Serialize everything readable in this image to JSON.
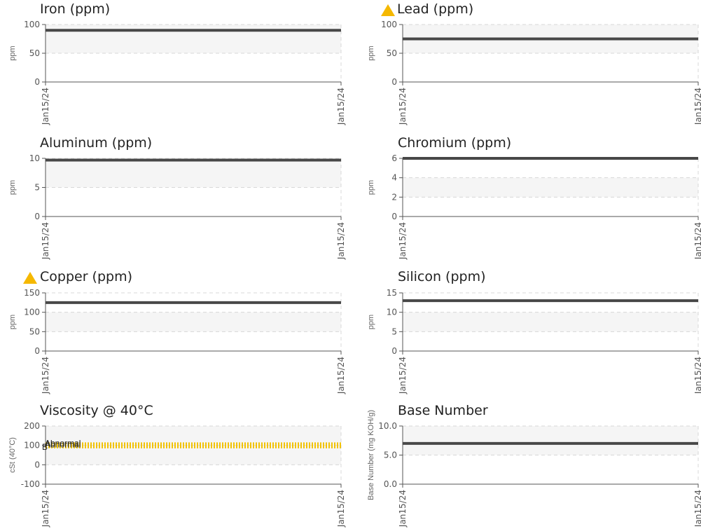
{
  "x_labels": [
    "Jan15/24",
    "Jan15/24"
  ],
  "chart_data": [
    {
      "type": "line",
      "title": "Iron (ppm)",
      "warning": false,
      "ylabel": "ppm",
      "yticks": [
        "0",
        "50",
        "100"
      ],
      "ylim": [
        0,
        100
      ],
      "band": [
        50,
        100
      ],
      "series": [
        {
          "values": [
            90,
            90
          ]
        }
      ]
    },
    {
      "type": "line",
      "title": "Lead (ppm)",
      "warning": true,
      "ylabel": "ppm",
      "yticks": [
        "0",
        "50",
        "100"
      ],
      "ylim": [
        0,
        100
      ],
      "band": [
        50,
        100
      ],
      "series": [
        {
          "values": [
            75,
            75
          ]
        }
      ]
    },
    {
      "type": "line",
      "title": "Aluminum (ppm)",
      "warning": false,
      "ylabel": "ppm",
      "yticks": [
        "0",
        "5",
        "10"
      ],
      "ylim": [
        0,
        10
      ],
      "band": [
        5,
        10
      ],
      "series": [
        {
          "values": [
            9.7,
            9.7
          ]
        }
      ]
    },
    {
      "type": "line",
      "title": "Chromium (ppm)",
      "warning": false,
      "ylabel": "ppm",
      "yticks": [
        "0",
        "2",
        "4",
        "6"
      ],
      "ylim": [
        0,
        6
      ],
      "band": [
        2,
        4
      ],
      "series": [
        {
          "values": [
            6,
            6
          ]
        }
      ]
    },
    {
      "type": "line",
      "title": "Copper (ppm)",
      "warning": true,
      "ylabel": "ppm",
      "yticks": [
        "0",
        "50",
        "100",
        "150"
      ],
      "ylim": [
        0,
        150
      ],
      "band": [
        50,
        100
      ],
      "series": [
        {
          "values": [
            125,
            125
          ]
        }
      ]
    },
    {
      "type": "line",
      "title": "Silicon (ppm)",
      "warning": false,
      "ylabel": "ppm",
      "yticks": [
        "0",
        "5",
        "10",
        "15"
      ],
      "ylim": [
        0,
        15
      ],
      "band": [
        5,
        10
      ],
      "series": [
        {
          "values": [
            13,
            13
          ]
        }
      ]
    },
    {
      "type": "line",
      "title": "Viscosity @ 40°C",
      "warning": false,
      "ylabel": "cSt (40°C)",
      "yticks": [
        "-100",
        "0",
        "100",
        "200"
      ],
      "ylim": [
        -100,
        200
      ],
      "band": [
        0,
        200
      ],
      "series": [],
      "limit_lines": [
        {
          "value": 110,
          "color": "#f2c200"
        },
        {
          "value": 100,
          "color": "#f2c200"
        },
        {
          "value": 90,
          "color": "#f2c200"
        }
      ],
      "annotations": [
        "Abnormal",
        "Abnormal",
        "B"
      ]
    },
    {
      "type": "line",
      "title": "Base Number",
      "warning": false,
      "ylabel": "Base Number (mg KOH/g)",
      "yticks": [
        "0.0",
        "5.0",
        "10.0"
      ],
      "ylim": [
        0,
        10
      ],
      "band": [
        5,
        10
      ],
      "series": [
        {
          "values": [
            7,
            7
          ]
        }
      ]
    }
  ],
  "colors": {
    "line": "#484848",
    "band": "#f5f5f5",
    "grid": "#d8d8d8",
    "axis": "#555555",
    "warning": "#f5b800"
  }
}
